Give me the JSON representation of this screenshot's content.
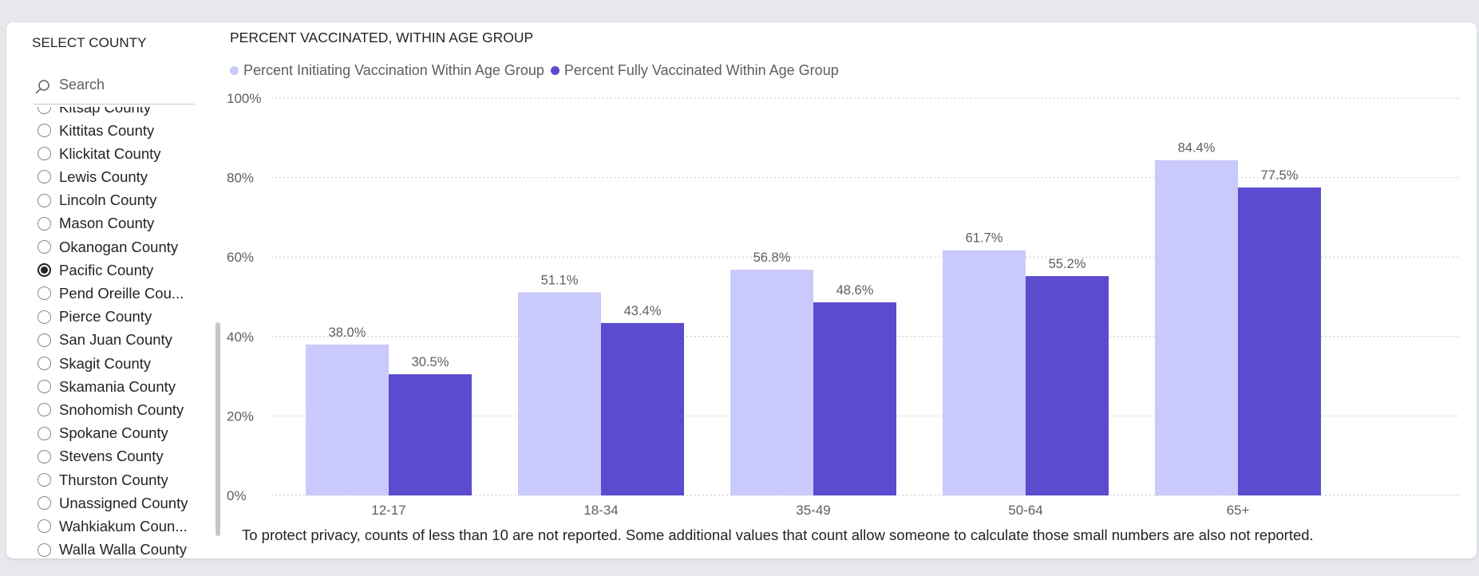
{
  "slicer": {
    "title": "SELECT COUNTY",
    "search_placeholder": "Search",
    "partial_item": "Kitsap County",
    "items": [
      {
        "label": "Kittitas County",
        "selected": false
      },
      {
        "label": "Klickitat County",
        "selected": false
      },
      {
        "label": "Lewis County",
        "selected": false
      },
      {
        "label": "Lincoln County",
        "selected": false
      },
      {
        "label": "Mason County",
        "selected": false
      },
      {
        "label": "Okanogan County",
        "selected": false
      },
      {
        "label": "Pacific County",
        "selected": true
      },
      {
        "label": "Pend Oreille Cou...",
        "selected": false
      },
      {
        "label": "Pierce County",
        "selected": false
      },
      {
        "label": "San Juan County",
        "selected": false
      },
      {
        "label": "Skagit County",
        "selected": false
      },
      {
        "label": "Skamania County",
        "selected": false
      },
      {
        "label": "Snohomish County",
        "selected": false
      },
      {
        "label": "Spokane County",
        "selected": false
      },
      {
        "label": "Stevens County",
        "selected": false
      },
      {
        "label": "Thurston County",
        "selected": false
      },
      {
        "label": "Unassigned County",
        "selected": false
      },
      {
        "label": "Wahkiakum Coun...",
        "selected": false
      },
      {
        "label": "Walla Walla County",
        "selected": false
      }
    ]
  },
  "footnote": "To protect privacy, counts of less than 10 are not reported. Some additional values that count allow someone to calculate those small numbers are also not reported.",
  "colors": {
    "initiating": "#c9c9fb",
    "fully": "#5b4bce",
    "grid": "#c8c6c4"
  },
  "chart_data": {
    "type": "bar",
    "title": "PERCENT VACCINATED, WITHIN AGE GROUP",
    "categories": [
      "12-17",
      "18-34",
      "35-49",
      "50-64",
      "65+"
    ],
    "series": [
      {
        "name": "Percent Initiating Vaccination Within Age Group",
        "values": [
          38.0,
          51.1,
          56.8,
          61.7,
          84.4
        ],
        "labels": [
          "38.0%",
          "51.1%",
          "56.8%",
          "61.7%",
          "84.4%"
        ]
      },
      {
        "name": "Percent Fully Vaccinated Within Age Group",
        "values": [
          30.5,
          43.4,
          48.6,
          55.2,
          77.5
        ],
        "labels": [
          "30.5%",
          "43.4%",
          "48.6%",
          "55.2%",
          "77.5%"
        ]
      }
    ],
    "ylim": [
      0,
      100
    ],
    "yticks": [
      0,
      20,
      40,
      60,
      80,
      100
    ],
    "ytick_labels": [
      "0%",
      "20%",
      "40%",
      "60%",
      "80%",
      "100%"
    ],
    "grid": true,
    "legend_position": "top-left"
  }
}
